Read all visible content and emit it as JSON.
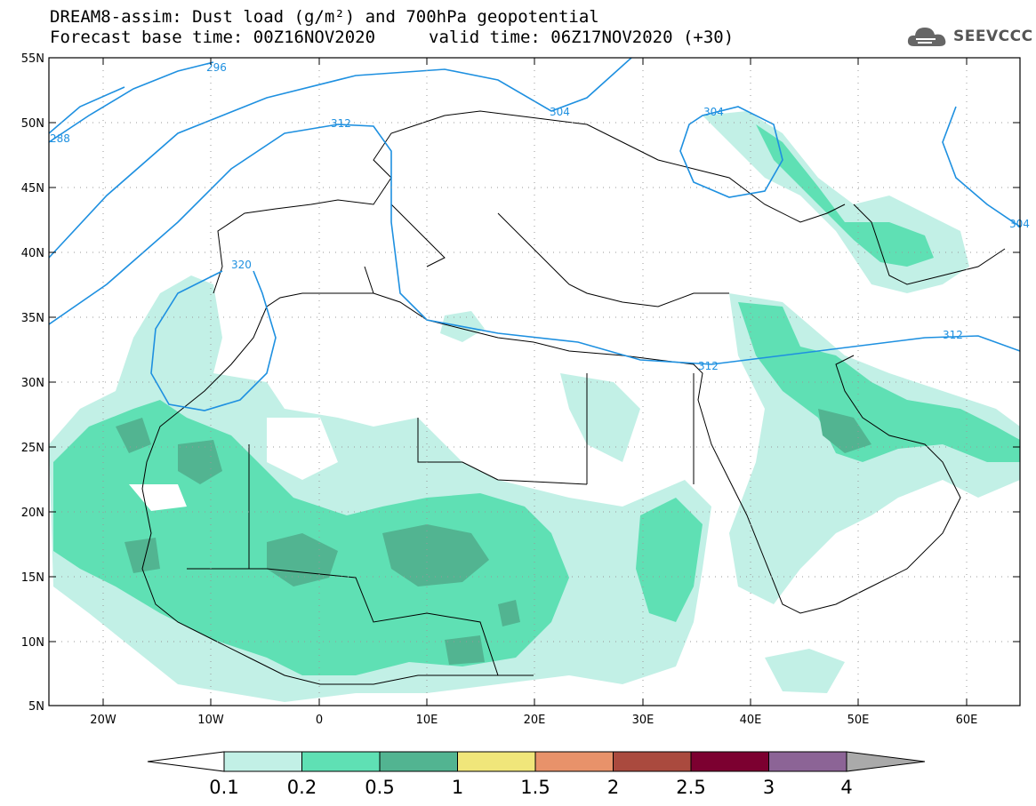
{
  "header": {
    "title_line1": "DREAM8-assim: Dust load (g/m²) and 700hPa geopotential",
    "title_line2a": "Forecast base time: 00Z16NOV2020",
    "title_line2b": "valid time: 06Z17NOV2020 (+30)",
    "logo_text": "SEEVCCC",
    "logo_icon": "cloud-icon"
  },
  "map": {
    "lat_labels": [
      "55N",
      "50N",
      "45N",
      "40N",
      "35N",
      "30N",
      "25N",
      "20N",
      "15N",
      "10N",
      "5N"
    ],
    "lon_labels": [
      "20W",
      "10W",
      "0",
      "10E",
      "20E",
      "30E",
      "40E",
      "50E",
      "60E"
    ],
    "contour_labels": [
      "296",
      "288",
      "312",
      "304",
      "304",
      "320",
      "312",
      "312",
      "304"
    ],
    "contour_color": "#1e90e0"
  },
  "colorbar": {
    "levels": [
      "0.1",
      "0.2",
      "0.5",
      "1",
      "1.5",
      "2",
      "2.5",
      "3",
      "4"
    ],
    "colors": [
      "#c2f0e6",
      "#5fe0b4",
      "#52b491",
      "#f0e67a",
      "#e8926a",
      "#aa4a3e",
      "#7c0030",
      "#8c6496",
      "#aaaaaa"
    ]
  }
}
